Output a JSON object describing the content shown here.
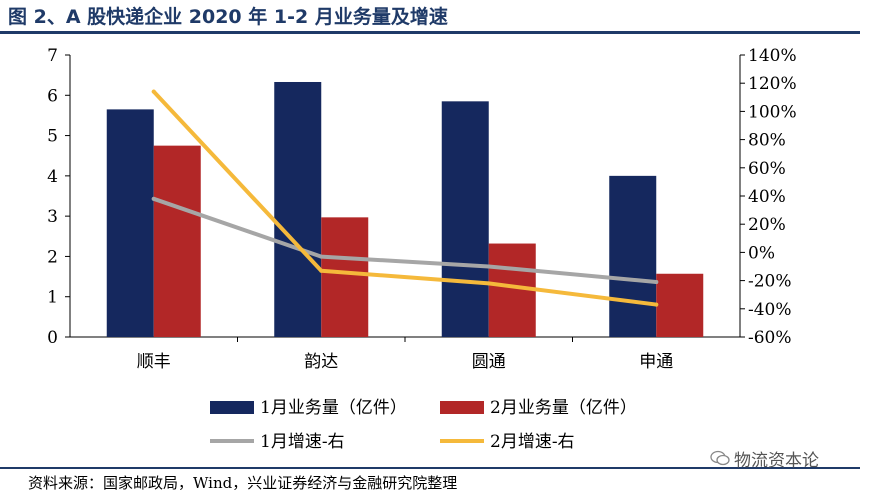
{
  "title": "图 2、A 股快递企业 2020 年 1-2 月业务量及增速",
  "source": "资料来源：国家邮政局，Wind，兴业证券经济与金融研究院整理",
  "watermark": {
    "icon": "wechat-icon",
    "text": "物流资本论"
  },
  "colors": {
    "title": "#1f3a68",
    "bar1": "#15285e",
    "bar2": "#b22727",
    "line1": "#a6a6a6",
    "line2": "#f5b93b"
  },
  "chart_data": {
    "type": "bar",
    "categories": [
      "顺丰",
      "韵达",
      "圆通",
      "申通"
    ],
    "series": [
      {
        "name": "1月业务量（亿件）",
        "type": "bar",
        "axis": "left",
        "values": [
          5.65,
          6.33,
          5.85,
          4.0
        ]
      },
      {
        "name": "2月业务量（亿件）",
        "type": "bar",
        "axis": "left",
        "values": [
          4.75,
          2.97,
          2.32,
          1.57
        ]
      },
      {
        "name": "1月增速-右",
        "type": "line",
        "axis": "right",
        "values": [
          38,
          -3,
          -10,
          -21
        ]
      },
      {
        "name": "2月增速-右",
        "type": "line",
        "axis": "right",
        "values": [
          114,
          -13,
          -22,
          -37
        ]
      }
    ],
    "left_axis": {
      "ylim": [
        0,
        7
      ],
      "ticks": [
        "0",
        "1",
        "2",
        "3",
        "4",
        "5",
        "6",
        "7"
      ]
    },
    "right_axis": {
      "ylim": [
        -60,
        140
      ],
      "ticks": [
        "-60%",
        "-40%",
        "-20%",
        "0%",
        "20%",
        "40%",
        "60%",
        "80%",
        "100%",
        "120%",
        "140%"
      ]
    },
    "grid": false,
    "legend_position": "bottom"
  }
}
